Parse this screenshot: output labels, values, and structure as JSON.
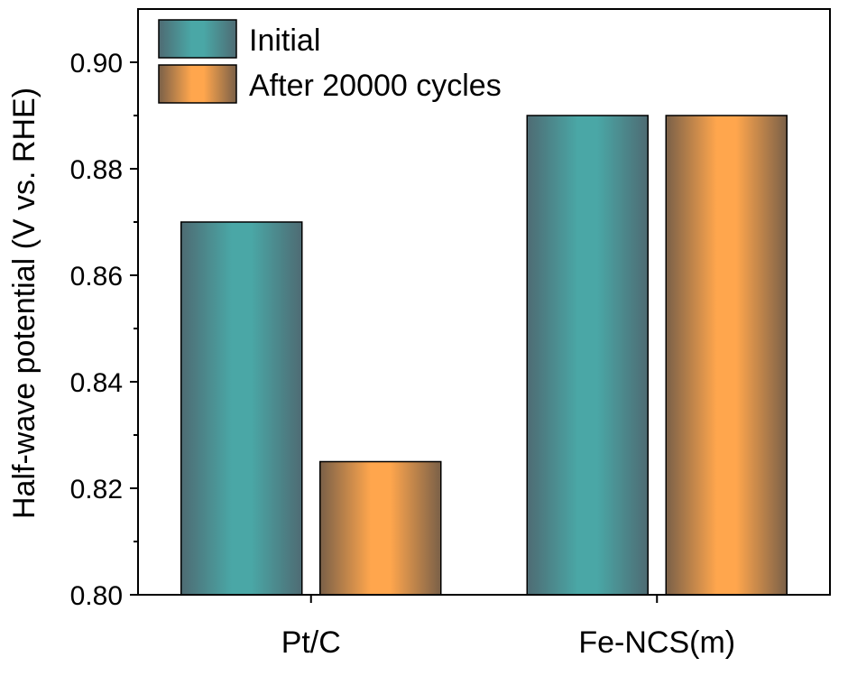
{
  "chart_data": {
    "type": "bar",
    "categories": [
      "Pt/C",
      "Fe-NCS(m)"
    ],
    "series": [
      {
        "name": "Initial",
        "values": [
          0.87,
          0.89
        ],
        "color": "#4aa7a6",
        "shade": "#4e6b73"
      },
      {
        "name": "After 20000 cycles",
        "values": [
          0.825,
          0.89
        ],
        "color": "#ffa64d",
        "shade": "#7a6048"
      }
    ],
    "ylabel": "Half-wave potential (V vs. RHE)",
    "xlabel": "",
    "ylim": [
      0.8,
      0.91
    ],
    "yticks": [
      "0.80",
      "0.82",
      "0.84",
      "0.86",
      "0.88",
      "0.90"
    ],
    "grid": false,
    "legend_position": "top-left"
  }
}
